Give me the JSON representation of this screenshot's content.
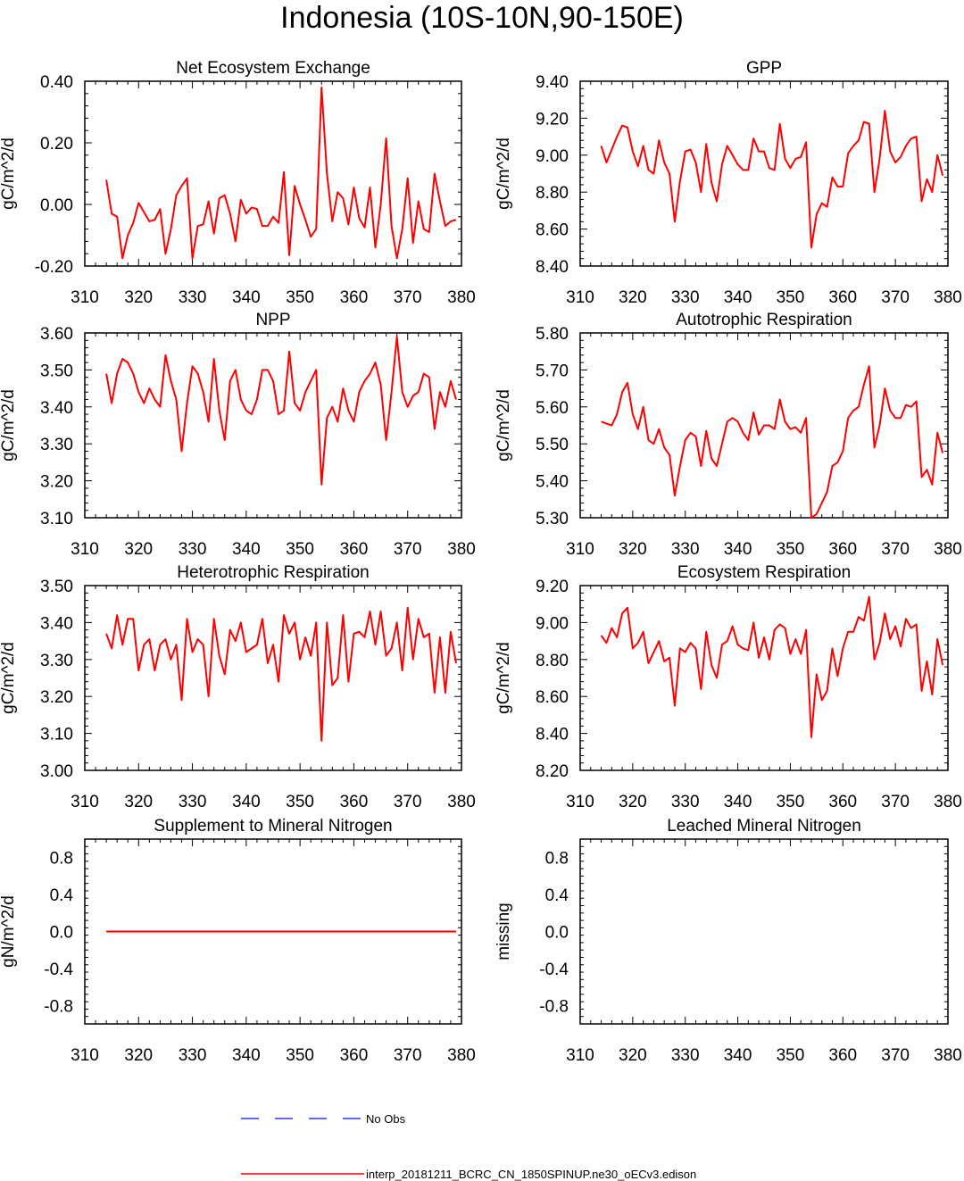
{
  "figure": {
    "title": "Indonesia (10S-10N,90-150E)"
  },
  "colors": {
    "model_line": "#ff0000",
    "obs_line": "#3333ff",
    "axis": "#000000"
  },
  "legend": [
    {
      "label": "No Obs",
      "color": "#3333ff",
      "style": "dashed"
    },
    {
      "label": "interp_20181211_BCRC_CN_1850SPINUP.ne30_oECv3.edison",
      "color": "#ff0000",
      "style": "solid"
    }
  ],
  "chart_data": [
    {
      "type": "line",
      "title": "Net Ecosystem Exchange",
      "ylabel": "gC/m^2/d",
      "xlim": [
        310,
        380
      ],
      "ylim": [
        -0.2,
        0.4
      ],
      "x_ticks": [
        310,
        320,
        330,
        340,
        350,
        360,
        370,
        380
      ],
      "y_ticks": [
        "-0.20",
        "0.00",
        "0.20",
        "0.40"
      ],
      "y_tick_values": [
        -0.2,
        0.0,
        0.2,
        0.4
      ],
      "x_start": 314,
      "series": [
        {
          "values": [
            0.08,
            -0.03,
            -0.04,
            -0.175,
            -0.1,
            -0.06,
            0.005,
            -0.025,
            -0.055,
            -0.05,
            -0.015,
            -0.16,
            -0.08,
            0.03,
            0.06,
            0.085,
            -0.175,
            -0.07,
            -0.065,
            0.01,
            -0.095,
            0.02,
            0.03,
            -0.03,
            -0.12,
            0.015,
            -0.03,
            -0.01,
            -0.015,
            -0.07,
            -0.07,
            -0.04,
            -0.06,
            0.105,
            -0.165,
            0.06,
            0.0,
            -0.05,
            -0.105,
            -0.08,
            0.38,
            0.1,
            -0.055,
            0.04,
            0.02,
            -0.065,
            0.055,
            -0.045,
            -0.075,
            0.055,
            -0.14,
            0.0,
            0.215,
            -0.07,
            -0.175,
            -0.08,
            0.085,
            -0.125,
            0.01,
            -0.08,
            -0.09,
            0.1,
            0.01,
            -0.07,
            -0.055,
            -0.05
          ]
        }
      ]
    },
    {
      "type": "line",
      "title": "GPP",
      "ylabel": "gC/m^2/d",
      "xlim": [
        310,
        380
      ],
      "ylim": [
        8.4,
        9.4
      ],
      "x_ticks": [
        310,
        320,
        330,
        340,
        350,
        360,
        370,
        380
      ],
      "y_ticks": [
        "8.40",
        "8.60",
        "8.80",
        "9.00",
        "9.20",
        "9.40"
      ],
      "y_tick_values": [
        8.4,
        8.6,
        8.8,
        9.0,
        9.2,
        9.4
      ],
      "x_start": 314,
      "series": [
        {
          "values": [
            9.05,
            8.96,
            9.03,
            9.1,
            9.16,
            9.15,
            9.02,
            8.94,
            9.05,
            8.92,
            8.9,
            9.08,
            8.96,
            8.9,
            8.64,
            8.86,
            9.02,
            9.03,
            8.96,
            8.8,
            9.06,
            8.85,
            8.75,
            8.95,
            9.05,
            9.0,
            8.95,
            8.92,
            8.92,
            9.09,
            9.02,
            9.02,
            8.93,
            8.92,
            9.17,
            8.98,
            8.93,
            8.98,
            8.99,
            9.07,
            8.5,
            8.68,
            8.74,
            8.72,
            8.88,
            8.83,
            8.83,
            9.01,
            9.05,
            9.08,
            9.18,
            9.17,
            8.8,
            8.98,
            9.24,
            9.02,
            8.96,
            8.99,
            9.05,
            9.09,
            9.1,
            8.75,
            8.87,
            8.8,
            9.0,
            8.89
          ]
        }
      ]
    },
    {
      "type": "line",
      "title": "NPP",
      "ylabel": "gC/m^2/d",
      "xlim": [
        310,
        380
      ],
      "ylim": [
        3.1,
        3.6
      ],
      "x_ticks": [
        310,
        320,
        330,
        340,
        350,
        360,
        370,
        380
      ],
      "y_ticks": [
        "3.10",
        "3.20",
        "3.30",
        "3.40",
        "3.50",
        "3.60"
      ],
      "y_tick_values": [
        3.1,
        3.2,
        3.3,
        3.4,
        3.5,
        3.6
      ],
      "x_start": 314,
      "series": [
        {
          "values": [
            3.49,
            3.41,
            3.49,
            3.53,
            3.52,
            3.49,
            3.44,
            3.41,
            3.45,
            3.42,
            3.4,
            3.54,
            3.47,
            3.42,
            3.28,
            3.41,
            3.51,
            3.49,
            3.44,
            3.36,
            3.53,
            3.39,
            3.31,
            3.47,
            3.5,
            3.42,
            3.39,
            3.38,
            3.42,
            3.5,
            3.5,
            3.47,
            3.38,
            3.39,
            3.55,
            3.41,
            3.39,
            3.44,
            3.47,
            3.5,
            3.19,
            3.37,
            3.4,
            3.36,
            3.45,
            3.39,
            3.36,
            3.44,
            3.47,
            3.49,
            3.52,
            3.46,
            3.31,
            3.44,
            3.59,
            3.44,
            3.4,
            3.43,
            3.44,
            3.49,
            3.48,
            3.34,
            3.44,
            3.4,
            3.47,
            3.42
          ]
        }
      ]
    },
    {
      "type": "line",
      "title": "Autotrophic Respiration",
      "ylabel": "gC/m^2/d",
      "xlim": [
        310,
        380
      ],
      "ylim": [
        5.3,
        5.8
      ],
      "x_ticks": [
        310,
        320,
        330,
        340,
        350,
        360,
        370,
        380
      ],
      "y_ticks": [
        "5.30",
        "5.40",
        "5.50",
        "5.60",
        "5.70",
        "5.80"
      ],
      "y_tick_values": [
        5.3,
        5.4,
        5.5,
        5.6,
        5.7,
        5.8
      ],
      "x_start": 314,
      "series": [
        {
          "values": [
            5.56,
            5.555,
            5.55,
            5.58,
            5.64,
            5.665,
            5.58,
            5.54,
            5.6,
            5.51,
            5.5,
            5.54,
            5.49,
            5.47,
            5.36,
            5.44,
            5.51,
            5.53,
            5.52,
            5.44,
            5.535,
            5.46,
            5.44,
            5.5,
            5.56,
            5.57,
            5.56,
            5.53,
            5.51,
            5.585,
            5.525,
            5.55,
            5.55,
            5.54,
            5.62,
            5.56,
            5.54,
            5.545,
            5.53,
            5.57,
            5.3,
            5.31,
            5.34,
            5.37,
            5.44,
            5.45,
            5.48,
            5.57,
            5.59,
            5.6,
            5.66,
            5.71,
            5.49,
            5.55,
            5.65,
            5.59,
            5.57,
            5.57,
            5.605,
            5.6,
            5.615,
            5.41,
            5.43,
            5.39,
            5.53,
            5.475
          ]
        }
      ]
    },
    {
      "type": "line",
      "title": "Heterotrophic Respiration",
      "ylabel": "gC/m^2/d",
      "xlim": [
        310,
        380
      ],
      "ylim": [
        3.0,
        3.5
      ],
      "x_ticks": [
        310,
        320,
        330,
        340,
        350,
        360,
        370,
        380
      ],
      "y_ticks": [
        "3.00",
        "3.10",
        "3.20",
        "3.30",
        "3.40",
        "3.50"
      ],
      "y_tick_values": [
        3.0,
        3.1,
        3.2,
        3.3,
        3.4,
        3.5
      ],
      "x_start": 314,
      "series": [
        {
          "values": [
            3.37,
            3.33,
            3.42,
            3.34,
            3.41,
            3.41,
            3.27,
            3.34,
            3.355,
            3.27,
            3.34,
            3.355,
            3.3,
            3.34,
            3.19,
            3.41,
            3.32,
            3.355,
            3.34,
            3.2,
            3.41,
            3.31,
            3.26,
            3.38,
            3.35,
            3.4,
            3.32,
            3.33,
            3.34,
            3.41,
            3.29,
            3.34,
            3.24,
            3.42,
            3.37,
            3.4,
            3.3,
            3.36,
            3.31,
            3.4,
            3.08,
            3.4,
            3.23,
            3.25,
            3.42,
            3.24,
            3.37,
            3.375,
            3.36,
            3.43,
            3.34,
            3.43,
            3.31,
            3.33,
            3.4,
            3.27,
            3.44,
            3.3,
            3.41,
            3.36,
            3.37,
            3.21,
            3.36,
            3.21,
            3.375,
            3.29
          ]
        }
      ]
    },
    {
      "type": "line",
      "title": "Ecosystem Respiration",
      "ylabel": "gC/m^2/d",
      "xlim": [
        310,
        380
      ],
      "ylim": [
        8.2,
        9.2
      ],
      "x_ticks": [
        310,
        320,
        330,
        340,
        350,
        360,
        370,
        380
      ],
      "y_ticks": [
        "8.20",
        "8.40",
        "8.60",
        "8.80",
        "9.00",
        "9.20"
      ],
      "y_tick_values": [
        8.2,
        8.4,
        8.6,
        8.8,
        9.0,
        9.2
      ],
      "x_start": 314,
      "series": [
        {
          "values": [
            8.93,
            8.89,
            8.97,
            8.92,
            9.05,
            9.08,
            8.86,
            8.89,
            8.95,
            8.78,
            8.84,
            8.9,
            8.79,
            8.81,
            8.55,
            8.86,
            8.84,
            8.89,
            8.86,
            8.64,
            8.95,
            8.77,
            8.7,
            8.88,
            8.9,
            8.98,
            8.88,
            8.86,
            8.85,
            9.0,
            8.81,
            8.92,
            8.8,
            8.96,
            8.99,
            8.97,
            8.83,
            8.91,
            8.83,
            8.96,
            8.38,
            8.72,
            8.58,
            8.63,
            8.86,
            8.71,
            8.86,
            8.95,
            8.95,
            9.03,
            9.01,
            9.14,
            8.8,
            8.89,
            9.05,
            8.91,
            8.98,
            8.87,
            9.02,
            8.97,
            8.99,
            8.63,
            8.79,
            8.61,
            8.91,
            8.77
          ]
        }
      ]
    },
    {
      "type": "line",
      "title": "Supplement to Mineral Nitrogen",
      "ylabel": "gN/m^2/d",
      "xlim": [
        310,
        380
      ],
      "ylim": [
        -1.0,
        1.0
      ],
      "x_ticks": [
        310,
        320,
        330,
        340,
        350,
        360,
        370,
        380
      ],
      "y_ticks": [
        "-0.8",
        "-0.4",
        "0.0",
        "0.4",
        "0.8"
      ],
      "y_tick_values": [
        -0.8,
        -0.4,
        0.0,
        0.4,
        0.8
      ],
      "x_start": 314,
      "series": [
        {
          "values": [
            0,
            0,
            0,
            0,
            0,
            0,
            0,
            0,
            0,
            0,
            0,
            0,
            0,
            0,
            0,
            0,
            0,
            0,
            0,
            0,
            0,
            0,
            0,
            0,
            0,
            0,
            0,
            0,
            0,
            0,
            0,
            0,
            0,
            0,
            0,
            0,
            0,
            0,
            0,
            0,
            0,
            0,
            0,
            0,
            0,
            0,
            0,
            0,
            0,
            0,
            0,
            0,
            0,
            0,
            0,
            0,
            0,
            0,
            0,
            0,
            0,
            0,
            0,
            0,
            0,
            0
          ]
        }
      ]
    },
    {
      "type": "line",
      "title": "Leached Mineral Nitrogen",
      "ylabel": "missing",
      "xlim": [
        310,
        380
      ],
      "ylim": [
        -1.0,
        1.0
      ],
      "x_ticks": [
        310,
        320,
        330,
        340,
        350,
        360,
        370,
        380
      ],
      "y_ticks": [
        "-0.8",
        "-0.4",
        "0.0",
        "0.4",
        "0.8"
      ],
      "y_tick_values": [
        -0.8,
        -0.4,
        0.0,
        0.4,
        0.8
      ],
      "x_start": 314,
      "series": []
    }
  ]
}
